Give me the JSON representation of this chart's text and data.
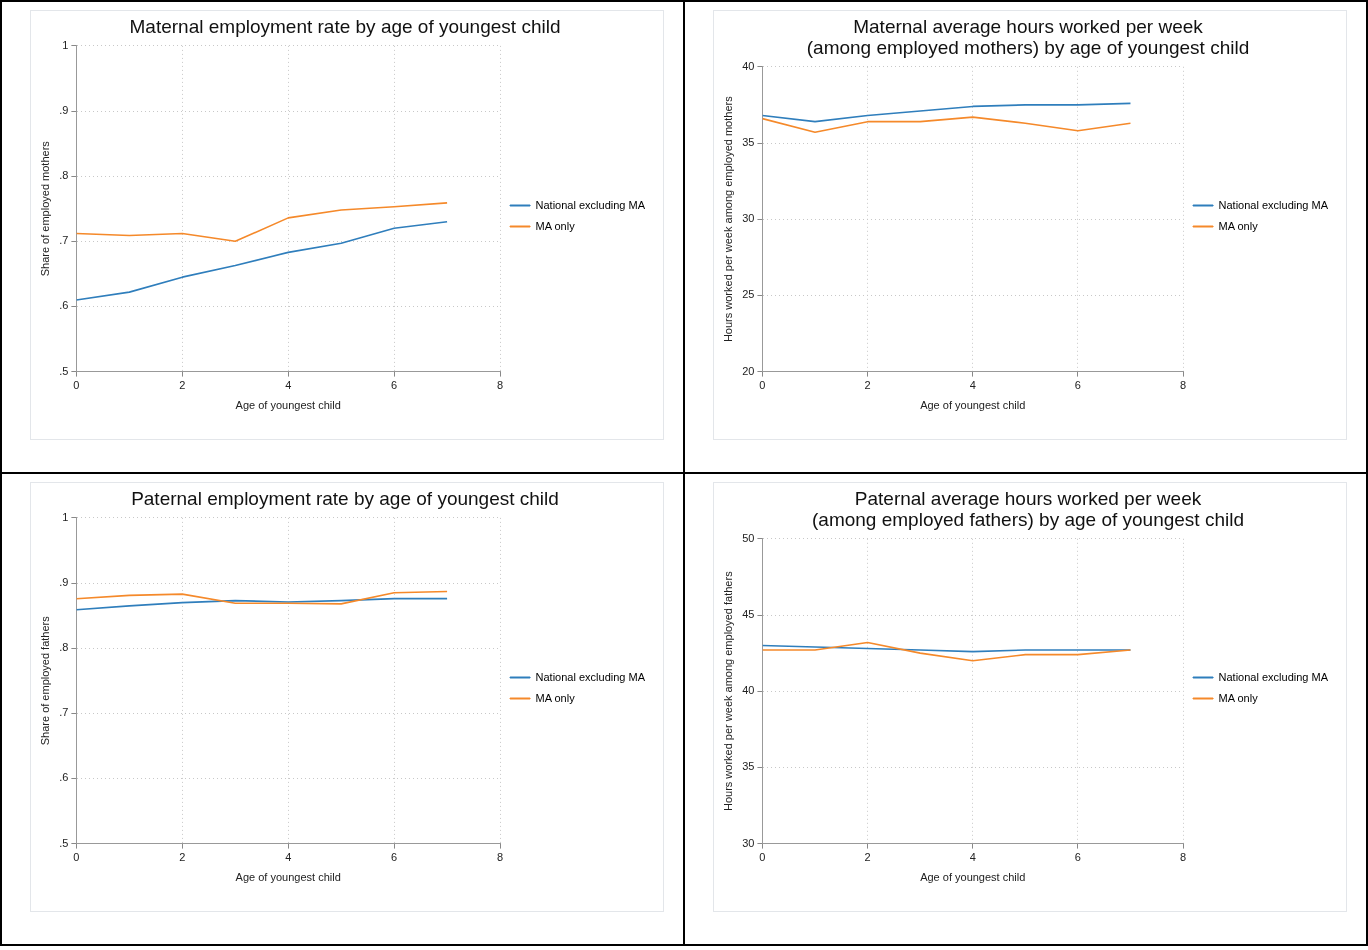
{
  "chart_data": [
    {
      "type": "line",
      "title": "Maternal employment rate by age of youngest child",
      "xlabel": "Age of youngest child",
      "ylabel": "Share of employed mothers",
      "x": [
        0,
        1,
        2,
        3,
        4,
        5,
        6,
        7
      ],
      "series": [
        {
          "name": "National excluding MA",
          "color": "#2f7ebc",
          "values": [
            0.61,
            0.622,
            0.645,
            0.663,
            0.683,
            0.697,
            0.72,
            0.73
          ]
        },
        {
          "name": "MA only",
          "color": "#f5892a",
          "values": [
            0.712,
            0.709,
            0.712,
            0.7,
            0.736,
            0.748,
            0.753,
            0.759
          ]
        }
      ],
      "xlim": [
        0,
        8
      ],
      "xticks": [
        0,
        2,
        4,
        6,
        8
      ],
      "ylim": [
        0.5,
        1
      ],
      "yticks": [
        {
          "value": 0.5,
          "label": ".5"
        },
        {
          "value": 0.6,
          "label": ".6"
        },
        {
          "value": 0.7,
          "label": ".7"
        },
        {
          "value": 0.8,
          "label": ".8"
        },
        {
          "value": 0.9,
          "label": ".9"
        },
        1
      ],
      "grid": true,
      "legend": "right",
      "marker": "none",
      "line_style": "solid"
    },
    {
      "type": "line",
      "title": "Maternal average hours worked per week\n(among employed mothers) by age of youngest child",
      "xlabel": "Age of youngest child",
      "ylabel": "Hours worked per week among employed mothers",
      "x": [
        0,
        1,
        2,
        3,
        4,
        5,
        6,
        7
      ],
      "series": [
        {
          "name": "National excluding MA",
          "color": "#2f7ebc",
          "values": [
            36.8,
            36.4,
            36.8,
            37.1,
            37.4,
            37.5,
            37.5,
            37.6
          ]
        },
        {
          "name": "MA only",
          "color": "#f5892a",
          "values": [
            36.6,
            35.7,
            36.4,
            36.4,
            36.7,
            36.3,
            35.8,
            36.3
          ]
        }
      ],
      "xlim": [
        0,
        8
      ],
      "xticks": [
        0,
        2,
        4,
        6,
        8
      ],
      "ylim": [
        20,
        40
      ],
      "yticks": [
        20,
        25,
        30,
        35,
        40
      ],
      "grid": true,
      "legend": "right",
      "marker": "none",
      "line_style": "solid"
    },
    {
      "type": "line",
      "title": "Paternal employment rate by age of youngest child",
      "xlabel": "Age of youngest child",
      "ylabel": "Share of employed fathers",
      "x": [
        0,
        1,
        2,
        3,
        4,
        5,
        6,
        7
      ],
      "series": [
        {
          "name": "National excluding MA",
          "color": "#2f7ebc",
          "values": [
            0.859,
            0.865,
            0.87,
            0.873,
            0.871,
            0.873,
            0.876,
            0.876
          ]
        },
        {
          "name": "MA only",
          "color": "#f5892a",
          "values": [
            0.876,
            0.881,
            0.883,
            0.869,
            0.869,
            0.868,
            0.885,
            0.887
          ]
        }
      ],
      "xlim": [
        0,
        8
      ],
      "xticks": [
        0,
        2,
        4,
        6,
        8
      ],
      "ylim": [
        0.5,
        1
      ],
      "yticks": [
        {
          "value": 0.5,
          "label": ".5"
        },
        {
          "value": 0.6,
          "label": ".6"
        },
        {
          "value": 0.7,
          "label": ".7"
        },
        {
          "value": 0.8,
          "label": ".8"
        },
        {
          "value": 0.9,
          "label": ".9"
        },
        1
      ],
      "grid": true,
      "legend": "right",
      "marker": "none",
      "line_style": "solid"
    },
    {
      "type": "line",
      "title": "Paternal average hours worked per week\n(among employed fathers) by age of youngest child",
      "xlabel": "Age of youngest child",
      "ylabel": "Hours worked per week among employed fathers",
      "x": [
        0,
        1,
        2,
        3,
        4,
        5,
        6,
        7
      ],
      "series": [
        {
          "name": "National excluding MA",
          "color": "#2f7ebc",
          "values": [
            43.0,
            42.9,
            42.8,
            42.7,
            42.6,
            42.7,
            42.7,
            42.7
          ]
        },
        {
          "name": "MA only",
          "color": "#f5892a",
          "values": [
            42.7,
            42.7,
            43.2,
            42.5,
            42.0,
            42.4,
            42.4,
            42.7
          ]
        }
      ],
      "xlim": [
        0,
        8
      ],
      "xticks": [
        0,
        2,
        4,
        6,
        8
      ],
      "ylim": [
        30,
        50
      ],
      "yticks": [
        30,
        35,
        40,
        45,
        50
      ],
      "grid": true,
      "legend": "right",
      "marker": "none",
      "line_style": "solid"
    }
  ]
}
